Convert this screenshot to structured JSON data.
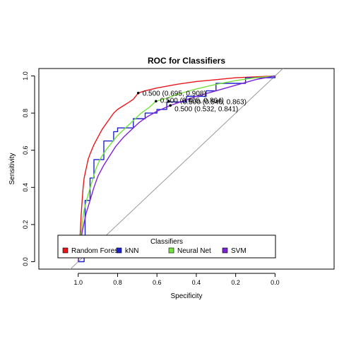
{
  "chart_data": {
    "type": "line",
    "title": "ROC for Classifiers",
    "xlabel": "Specificity",
    "ylabel": "Sensitivity",
    "xlim": [
      1.2,
      -0.3
    ],
    "ylim": [
      0.0,
      1.0
    ],
    "x_reversed": true,
    "x_ticks": [
      1.0,
      0.8,
      0.6,
      0.4,
      0.2,
      0.0
    ],
    "x_tick_labels": [
      "1.0",
      "0.8",
      "0.6",
      "0.4",
      "0.2",
      "0.0"
    ],
    "y_ticks": [
      0.0,
      0.2,
      0.4,
      0.6,
      0.8,
      1.0
    ],
    "y_tick_labels": [
      "0.0",
      "0.2",
      "0.4",
      "0.6",
      "0.8",
      "1.0"
    ],
    "grid": false,
    "reference_line": {
      "from": [
        1.0,
        0.0
      ],
      "to": [
        0.0,
        1.0
      ],
      "color": "#999999"
    },
    "legend": {
      "title": "Classifiers",
      "position": "bottom",
      "entries": [
        "Random Forest",
        "kNN",
        "Neural Net",
        "SVM"
      ]
    },
    "series": [
      {
        "name": "Random Forest",
        "color": "#e8161b",
        "points": [
          [
            1.0,
            0.0
          ],
          [
            0.995,
            0.05
          ],
          [
            0.99,
            0.15
          ],
          [
            0.985,
            0.25
          ],
          [
            0.98,
            0.33
          ],
          [
            0.975,
            0.4
          ],
          [
            0.97,
            0.45
          ],
          [
            0.96,
            0.5
          ],
          [
            0.95,
            0.55
          ],
          [
            0.94,
            0.58
          ],
          [
            0.92,
            0.63
          ],
          [
            0.9,
            0.67
          ],
          [
            0.88,
            0.71
          ],
          [
            0.86,
            0.74
          ],
          [
            0.84,
            0.77
          ],
          [
            0.82,
            0.8
          ],
          [
            0.8,
            0.82
          ],
          [
            0.77,
            0.84
          ],
          [
            0.74,
            0.86
          ],
          [
            0.72,
            0.875
          ],
          [
            0.695,
            0.908
          ],
          [
            0.66,
            0.92
          ],
          [
            0.6,
            0.935
          ],
          [
            0.5,
            0.955
          ],
          [
            0.4,
            0.97
          ],
          [
            0.3,
            0.98
          ],
          [
            0.2,
            0.99
          ],
          [
            0.1,
            0.995
          ],
          [
            0.0,
            1.0
          ]
        ]
      },
      {
        "name": "kNN",
        "color": "#1d22d1",
        "points": [
          [
            1.0,
            0.0
          ],
          [
            0.97,
            0.0
          ],
          [
            0.97,
            0.1
          ],
          [
            0.965,
            0.1
          ],
          [
            0.965,
            0.33
          ],
          [
            0.94,
            0.33
          ],
          [
            0.94,
            0.45
          ],
          [
            0.92,
            0.45
          ],
          [
            0.92,
            0.55
          ],
          [
            0.87,
            0.55
          ],
          [
            0.87,
            0.65
          ],
          [
            0.82,
            0.65
          ],
          [
            0.82,
            0.7
          ],
          [
            0.8,
            0.7
          ],
          [
            0.8,
            0.72
          ],
          [
            0.72,
            0.72
          ],
          [
            0.72,
            0.77
          ],
          [
            0.66,
            0.77
          ],
          [
            0.66,
            0.8
          ],
          [
            0.6,
            0.8
          ],
          [
            0.6,
            0.82
          ],
          [
            0.55,
            0.82
          ],
          [
            0.55,
            0.86
          ],
          [
            0.45,
            0.86
          ],
          [
            0.45,
            0.89
          ],
          [
            0.35,
            0.89
          ],
          [
            0.35,
            0.92
          ],
          [
            0.3,
            0.92
          ],
          [
            0.3,
            0.96
          ],
          [
            0.15,
            0.96
          ],
          [
            0.15,
            0.99
          ],
          [
            0.0,
            0.99
          ],
          [
            0.0,
            1.0
          ]
        ]
      },
      {
        "name": "Neural Net",
        "color": "#74e339",
        "points": [
          [
            1.0,
            0.0
          ],
          [
            0.99,
            0.1
          ],
          [
            0.98,
            0.2
          ],
          [
            0.97,
            0.28
          ],
          [
            0.95,
            0.36
          ],
          [
            0.93,
            0.43
          ],
          [
            0.91,
            0.5
          ],
          [
            0.89,
            0.55
          ],
          [
            0.86,
            0.6
          ],
          [
            0.83,
            0.64
          ],
          [
            0.8,
            0.68
          ],
          [
            0.76,
            0.72
          ],
          [
            0.72,
            0.76
          ],
          [
            0.68,
            0.8
          ],
          [
            0.64,
            0.83
          ],
          [
            0.605,
            0.864
          ],
          [
            0.55,
            0.88
          ],
          [
            0.5,
            0.9
          ],
          [
            0.4,
            0.93
          ],
          [
            0.3,
            0.955
          ],
          [
            0.2,
            0.975
          ],
          [
            0.1,
            0.99
          ],
          [
            0.0,
            1.0
          ]
        ]
      },
      {
        "name": "SVM",
        "color": "#7e22d9",
        "points": [
          [
            1.0,
            0.0
          ],
          [
            0.99,
            0.08
          ],
          [
            0.98,
            0.16
          ],
          [
            0.96,
            0.26
          ],
          [
            0.94,
            0.33
          ],
          [
            0.92,
            0.4
          ],
          [
            0.9,
            0.46
          ],
          [
            0.87,
            0.52
          ],
          [
            0.84,
            0.57
          ],
          [
            0.81,
            0.62
          ],
          [
            0.77,
            0.67
          ],
          [
            0.73,
            0.71
          ],
          [
            0.69,
            0.75
          ],
          [
            0.65,
            0.78
          ],
          [
            0.6,
            0.81
          ],
          [
            0.532,
            0.841
          ],
          [
            0.48,
            0.86
          ],
          [
            0.4,
            0.89
          ],
          [
            0.3,
            0.92
          ],
          [
            0.2,
            0.95
          ],
          [
            0.1,
            0.98
          ],
          [
            0.0,
            1.0
          ]
        ]
      }
    ],
    "annotations": [
      {
        "text": "0.500 (0.695, 0.908)",
        "x": 0.695,
        "y": 0.908
      },
      {
        "text": "0.500 (0.605, 0.864)",
        "x": 0.605,
        "y": 0.864
      },
      {
        "text": "0.500 (0.540, 0.863)",
        "x": 0.54,
        "y": 0.863
      },
      {
        "text": "0.500 (0.532, 0.841)",
        "x": 0.532,
        "y": 0.841
      }
    ]
  }
}
